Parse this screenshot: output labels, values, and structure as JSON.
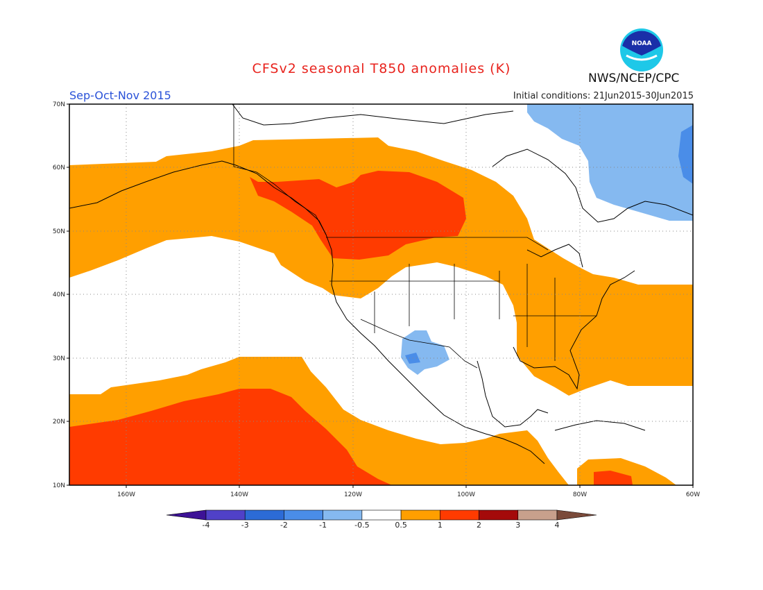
{
  "header": {
    "title": "CFSv2 seasonal T850 anomalies (K)",
    "agency": "NWS/NCEP/CPC",
    "season": "Sep-Oct-Nov 2015",
    "initial_conditions": "Initial conditions: 21Jun2015-30Jun2015",
    "logo_text": "NOAA"
  },
  "map": {
    "projection": "lat-lon",
    "lon_range": [
      "170W",
      "60W"
    ],
    "lat_range": [
      "10N",
      "70N"
    ],
    "lon_ticks": [
      "160W",
      "140W",
      "120W",
      "100W",
      "80W",
      "60W"
    ],
    "lat_ticks": [
      "70N",
      "60N",
      "50N",
      "40N",
      "30N",
      "20N",
      "10N"
    ]
  },
  "legend": {
    "labels": [
      "-4",
      "-3",
      "-2",
      "-1",
      "-0.5",
      "0.5",
      "1",
      "2",
      "3",
      "4"
    ],
    "colors": [
      "#3d1296",
      "#5041c8",
      "#2c6bd6",
      "#4a8de8",
      "#85b9f0",
      "#ffffff",
      "#ff9f00",
      "#ff3b00",
      "#a40a0a",
      "#c8a08c",
      "#7a4a3a"
    ]
  }
}
